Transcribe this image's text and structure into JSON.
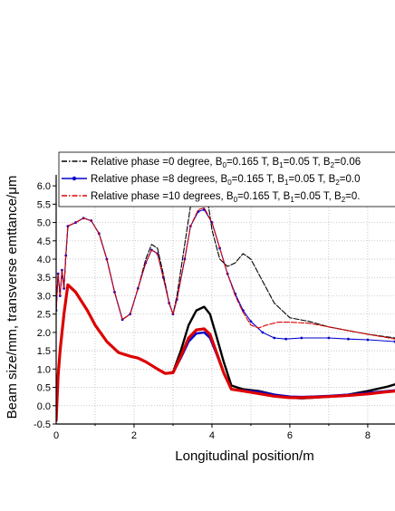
{
  "chart_data": {
    "type": "line",
    "title": "",
    "xlabel": "Longitudinal position/m",
    "ylabel": "Beam size/mm, transverse emttance/μm",
    "xlim": [
      0,
      8.7
    ],
    "ylim": [
      -0.5,
      6.3
    ],
    "x_ticks": [
      "0",
      "2",
      "4",
      "6",
      "8"
    ],
    "y_ticks": [
      "-0.5",
      "0.0",
      "0.5",
      "1.0",
      "1.5",
      "2.0",
      "2.5",
      "3.0",
      "3.5",
      "4.0",
      "4.5",
      "5.0",
      "5.5",
      "6.0"
    ],
    "grid": "dotted",
    "legend_position": "top",
    "legend": [
      {
        "text_a": "Relative phase =0 degree, B",
        "text_b": "=0.165 T, B",
        "text_c": "=0.05 T, B",
        "text_d": "=0.06",
        "color": "#000000",
        "style": "dash-dot"
      },
      {
        "text_a": "Relative phase =8 degrees, B",
        "text_b": "=0.165 T, B",
        "text_c": "=0.05 T, B",
        "text_d": "=0.0",
        "color": "#0000cc",
        "style": "line-dot"
      },
      {
        "text_a": "Relative phase =10 degrees, B",
        "text_b": "=0.165 T, B",
        "text_c": "=0.05 T, B",
        "text_d": "=0.",
        "color": "#dd0000",
        "style": "dash-dot"
      }
    ],
    "subscripts": [
      "0",
      "1",
      "2"
    ],
    "series": [
      {
        "group": "beam_size",
        "color": "#000000",
        "x": [
          0,
          0.05,
          0.1,
          0.2,
          0.3,
          0.5,
          0.8,
          1.0,
          1.3,
          1.6,
          1.9,
          2.1,
          2.3,
          2.6,
          2.8,
          3.0,
          3.2,
          3.4,
          3.6,
          3.8,
          3.95,
          4.1,
          4.3,
          4.5,
          4.8,
          5.2,
          5.6,
          6.0,
          6.3,
          6.6,
          7.0,
          7.5,
          8.0,
          8.5,
          8.7
        ],
        "y": [
          -0.4,
          0.8,
          1.5,
          2.5,
          3.3,
          3.1,
          2.6,
          2.2,
          1.75,
          1.45,
          1.35,
          1.3,
          1.2,
          1.0,
          0.88,
          0.92,
          1.5,
          2.2,
          2.6,
          2.7,
          2.5,
          1.95,
          1.2,
          0.55,
          0.45,
          0.4,
          0.3,
          0.22,
          0.2,
          0.22,
          0.25,
          0.3,
          0.4,
          0.52,
          0.58
        ]
      },
      {
        "group": "beam_size",
        "color": "#0000cc",
        "x": [
          0,
          0.05,
          0.1,
          0.2,
          0.3,
          0.5,
          0.8,
          1.0,
          1.3,
          1.6,
          1.9,
          2.1,
          2.3,
          2.6,
          2.8,
          3.0,
          3.2,
          3.4,
          3.6,
          3.8,
          3.95,
          4.1,
          4.3,
          4.5,
          4.8,
          5.2,
          5.6,
          6.0,
          6.3,
          6.6,
          7.0,
          7.5,
          8.0,
          8.5,
          8.7
        ],
        "y": [
          -0.4,
          0.8,
          1.5,
          2.5,
          3.3,
          3.1,
          2.6,
          2.2,
          1.75,
          1.45,
          1.35,
          1.3,
          1.2,
          1.0,
          0.88,
          0.9,
          1.3,
          1.75,
          1.97,
          2.0,
          1.85,
          1.45,
          0.9,
          0.45,
          0.42,
          0.38,
          0.3,
          0.25,
          0.24,
          0.25,
          0.27,
          0.3,
          0.35,
          0.4,
          0.42
        ]
      },
      {
        "group": "beam_size",
        "color": "#dd0000",
        "x": [
          0,
          0.05,
          0.1,
          0.2,
          0.3,
          0.5,
          0.8,
          1.0,
          1.3,
          1.6,
          1.9,
          2.1,
          2.3,
          2.6,
          2.8,
          3.0,
          3.2,
          3.4,
          3.6,
          3.8,
          3.95,
          4.1,
          4.3,
          4.5,
          4.8,
          5.2,
          5.6,
          6.0,
          6.3,
          6.6,
          7.0,
          7.5,
          8.0,
          8.5,
          8.7
        ],
        "y": [
          -0.4,
          0.8,
          1.5,
          2.5,
          3.3,
          3.1,
          2.6,
          2.2,
          1.75,
          1.45,
          1.35,
          1.3,
          1.2,
          1.0,
          0.88,
          0.9,
          1.35,
          1.85,
          2.07,
          2.1,
          1.95,
          1.5,
          0.9,
          0.45,
          0.4,
          0.33,
          0.26,
          0.22,
          0.22,
          0.23,
          0.25,
          0.28,
          0.32,
          0.38,
          0.4
        ]
      },
      {
        "group": "emittance",
        "color": "#000000",
        "x": [
          0,
          0.05,
          0.1,
          0.15,
          0.2,
          0.25,
          0.3,
          0.5,
          0.7,
          0.9,
          1.1,
          1.3,
          1.5,
          1.7,
          1.9,
          2.1,
          2.3,
          2.45,
          2.6,
          2.75,
          2.9,
          3.0,
          3.1,
          3.3,
          3.5,
          3.7,
          3.85,
          4.0,
          4.2,
          4.4,
          4.6,
          4.8,
          5.0,
          5.3,
          5.6,
          6.0,
          6.5,
          7.0,
          7.5,
          8.0,
          8.7
        ],
        "y": [
          2.6,
          3.6,
          3.0,
          3.7,
          3.2,
          4.1,
          4.9,
          5.0,
          5.12,
          5.05,
          4.7,
          4.0,
          3.1,
          2.35,
          2.5,
          3.2,
          4.0,
          4.4,
          4.3,
          3.6,
          2.8,
          2.5,
          3.0,
          4.4,
          5.8,
          6.5,
          5.9,
          4.8,
          4.0,
          3.8,
          3.9,
          4.15,
          4.0,
          3.4,
          2.8,
          2.4,
          2.3,
          2.15,
          2.05,
          1.95,
          1.85
        ]
      },
      {
        "group": "emittance",
        "color": "#0000cc",
        "x": [
          0,
          0.05,
          0.1,
          0.15,
          0.2,
          0.25,
          0.3,
          0.5,
          0.7,
          0.9,
          1.1,
          1.3,
          1.5,
          1.7,
          1.9,
          2.1,
          2.3,
          2.45,
          2.6,
          2.75,
          2.9,
          3.0,
          3.1,
          3.3,
          3.45,
          3.65,
          3.8,
          4.0,
          4.2,
          4.4,
          4.6,
          4.8,
          5.0,
          5.3,
          5.6,
          5.9,
          6.3,
          7.0,
          7.5,
          8.0,
          8.7
        ],
        "y": [
          2.6,
          3.6,
          3.0,
          3.7,
          3.2,
          4.1,
          4.9,
          5.0,
          5.12,
          5.05,
          4.7,
          4.0,
          3.1,
          2.35,
          2.5,
          3.2,
          3.9,
          4.25,
          4.15,
          3.5,
          2.8,
          2.5,
          2.9,
          4.0,
          4.9,
          5.3,
          5.35,
          5.0,
          4.3,
          3.6,
          3.05,
          2.6,
          2.3,
          2.0,
          1.85,
          1.82,
          1.85,
          1.85,
          1.82,
          1.8,
          1.75
        ]
      },
      {
        "group": "emittance",
        "color": "#dd0000",
        "x": [
          0,
          0.05,
          0.1,
          0.15,
          0.2,
          0.25,
          0.3,
          0.5,
          0.7,
          0.9,
          1.1,
          1.3,
          1.5,
          1.7,
          1.9,
          2.1,
          2.3,
          2.45,
          2.6,
          2.75,
          2.9,
          3.0,
          3.1,
          3.3,
          3.45,
          3.65,
          3.8,
          4.0,
          4.2,
          4.4,
          4.6,
          4.8,
          5.0,
          5.2,
          5.4,
          5.7,
          6.0,
          6.5,
          7.0,
          7.5,
          8.0,
          8.7
        ],
        "y": [
          2.6,
          3.6,
          3.0,
          3.7,
          3.2,
          4.1,
          4.9,
          5.0,
          5.12,
          5.05,
          4.7,
          4.0,
          3.1,
          2.35,
          2.5,
          3.2,
          3.9,
          4.25,
          4.15,
          3.5,
          2.8,
          2.5,
          2.9,
          4.0,
          4.9,
          5.35,
          5.4,
          5.0,
          4.3,
          3.6,
          3.0,
          2.55,
          2.2,
          2.12,
          2.2,
          2.28,
          2.28,
          2.25,
          2.15,
          2.05,
          1.95,
          1.82
        ]
      }
    ]
  }
}
